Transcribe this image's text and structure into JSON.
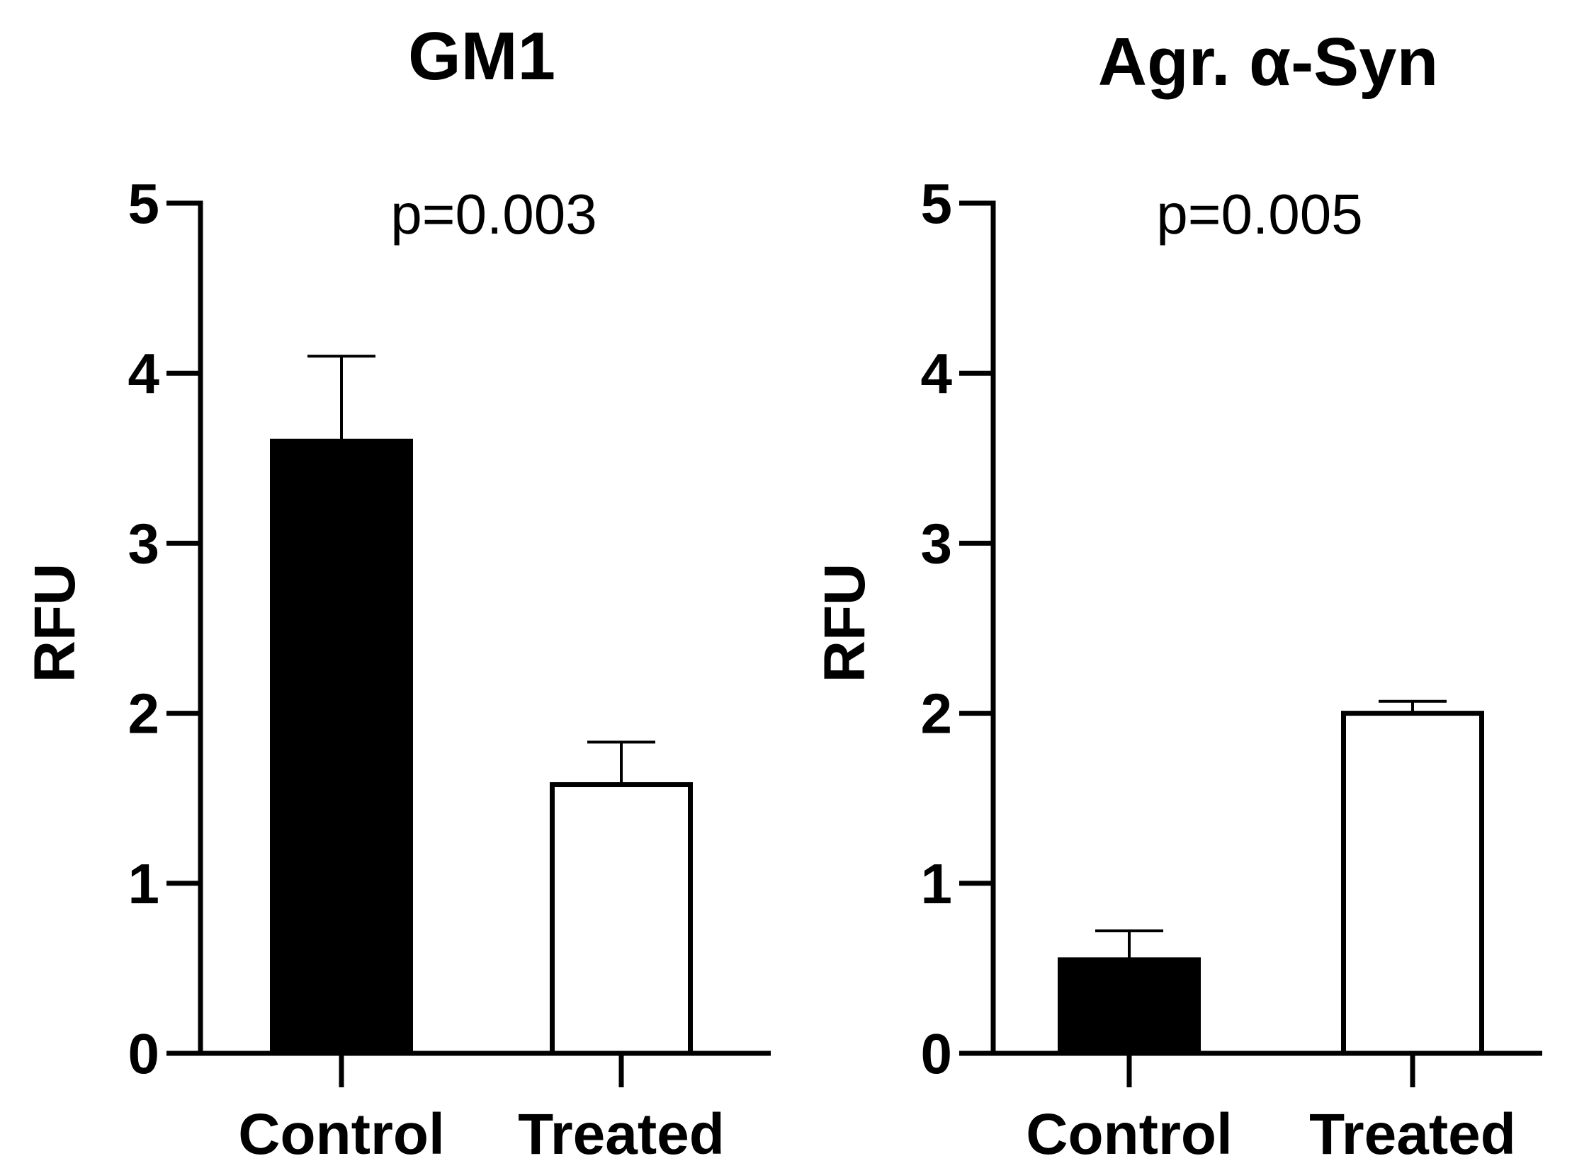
{
  "chart_data": [
    {
      "type": "bar",
      "title": "GM1",
      "annotation": "p=0.003",
      "ylabel": "RFU",
      "xlabel": "",
      "ylim": [
        0,
        5
      ],
      "yticks": [
        0,
        1,
        2,
        3,
        4,
        5
      ],
      "categories": [
        "Control",
        "Treated"
      ],
      "values": [
        3.6,
        1.58
      ],
      "errors": [
        0.5,
        0.25
      ],
      "fills": [
        "#000000",
        "#ffffff"
      ]
    },
    {
      "type": "bar",
      "title": "Agr. α-Syn",
      "annotation": "p=0.005",
      "ylabel": "RFU",
      "xlabel": "",
      "ylim": [
        0,
        5
      ],
      "yticks": [
        0,
        1,
        2,
        3,
        4,
        5
      ],
      "categories": [
        "Control",
        "Treated"
      ],
      "values": [
        0.55,
        2.0
      ],
      "errors": [
        0.17,
        0.07
      ],
      "fills": [
        "#000000",
        "#ffffff"
      ]
    }
  ]
}
